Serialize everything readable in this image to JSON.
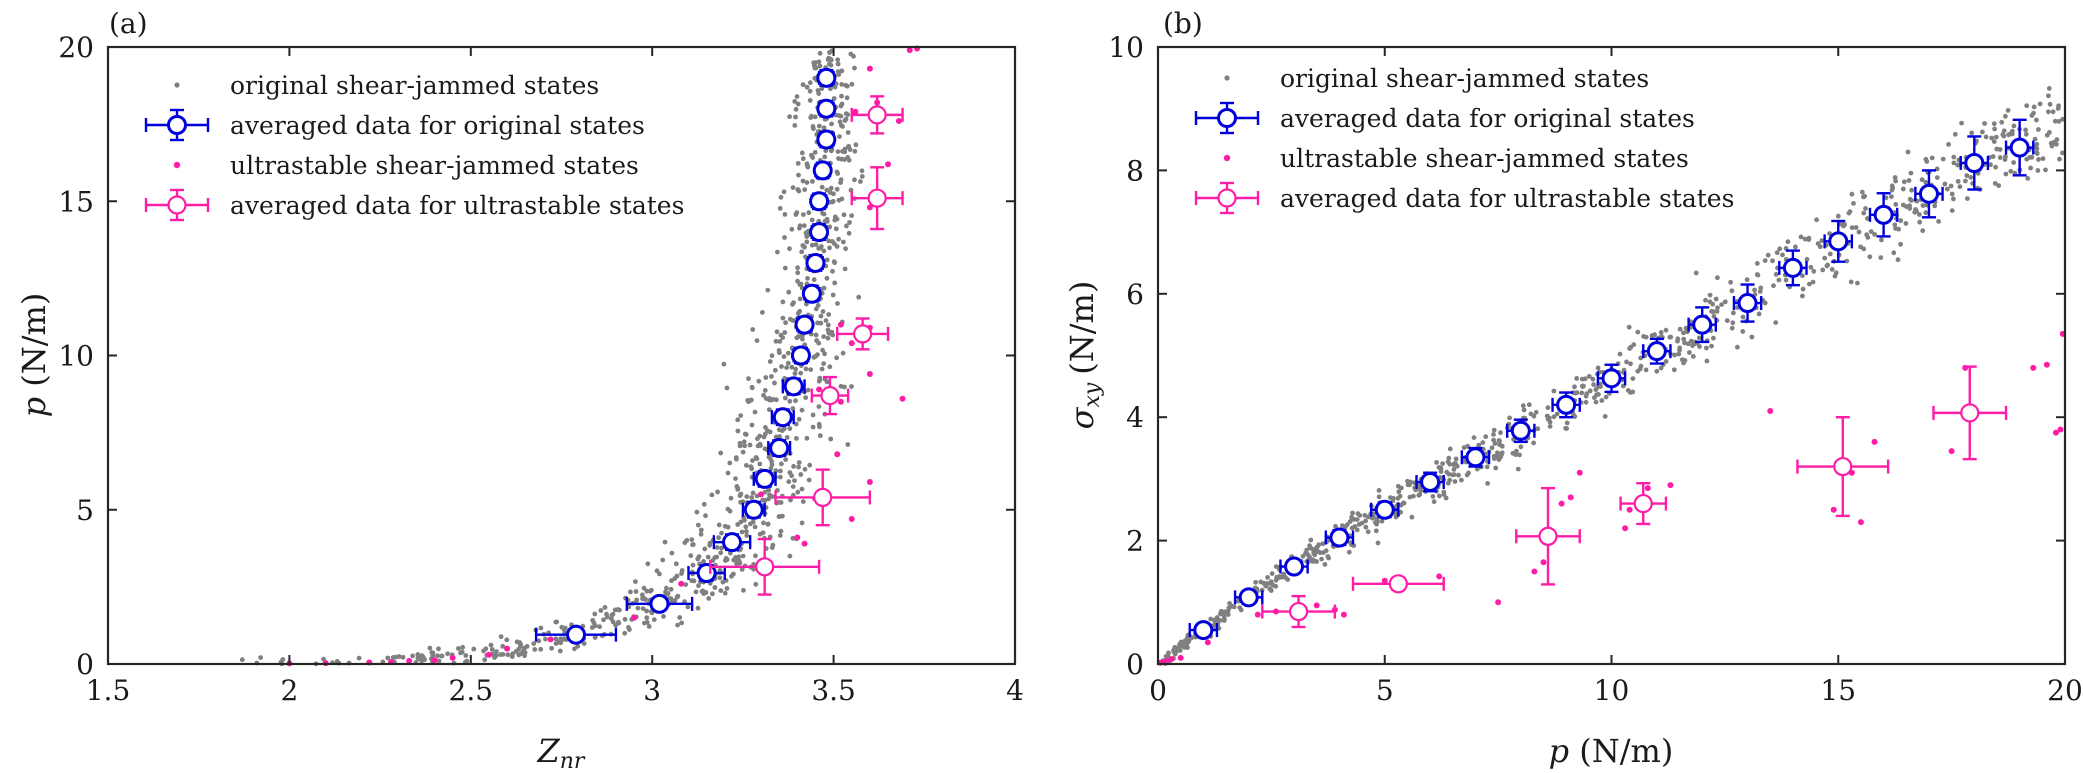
{
  "chart_data": [
    {
      "type": "scatter",
      "panel_label": "(a)",
      "xlabel": "Z_nr",
      "xlabel_main": "Z",
      "xlabel_sub": "nr",
      "ylabel": "p (N/m)",
      "ylabel_main": "p",
      "ylabel_unit": "(N/m)",
      "xlim": [
        1.5,
        4
      ],
      "ylim": [
        0,
        20
      ],
      "xticks": [
        1.5,
        2,
        2.5,
        3,
        3.5,
        4
      ],
      "yticks": [
        0,
        5,
        10,
        15,
        20
      ],
      "xtick_labels": [
        "1.5",
        "2",
        "2.5",
        "3",
        "3.5",
        "4"
      ],
      "ytick_labels": [
        "0",
        "5",
        "10",
        "15",
        "20"
      ],
      "legend": {
        "location": "top-left",
        "entries": [
          "original shear-jammed states",
          "averaged data for original states",
          "ultrastable shear-jammed states",
          "averaged data for ultrastable states"
        ]
      },
      "series": [
        {
          "name": "averaged data for original states",
          "color": "#0000dd",
          "points": [
            {
              "x": 2.79,
              "y": 0.95,
              "xerr": 0.11,
              "yerr": 0.15
            },
            {
              "x": 3.02,
              "y": 1.95,
              "xerr": 0.09,
              "yerr": 0.2
            },
            {
              "x": 3.15,
              "y": 2.95,
              "xerr": 0.05,
              "yerr": 0.25
            },
            {
              "x": 3.22,
              "y": 3.95,
              "xerr": 0.05,
              "yerr": 0.25
            },
            {
              "x": 3.28,
              "y": 5.0,
              "xerr": 0.03,
              "yerr": 0.25
            },
            {
              "x": 3.31,
              "y": 6.0,
              "xerr": 0.03,
              "yerr": 0.25
            },
            {
              "x": 3.35,
              "y": 7.0,
              "xerr": 0.03,
              "yerr": 0.25
            },
            {
              "x": 3.36,
              "y": 8.0,
              "xerr": 0.03,
              "yerr": 0.25
            },
            {
              "x": 3.39,
              "y": 9.0,
              "xerr": 0.03,
              "yerr": 0.25
            },
            {
              "x": 3.41,
              "y": 10.0,
              "xerr": 0.02,
              "yerr": 0.25
            },
            {
              "x": 3.42,
              "y": 11.0,
              "xerr": 0.02,
              "yerr": 0.25
            },
            {
              "x": 3.44,
              "y": 12.0,
              "xerr": 0.02,
              "yerr": 0.25
            },
            {
              "x": 3.45,
              "y": 13.0,
              "xerr": 0.02,
              "yerr": 0.25
            },
            {
              "x": 3.46,
              "y": 14.0,
              "xerr": 0.02,
              "yerr": 0.25
            },
            {
              "x": 3.46,
              "y": 15.0,
              "xerr": 0.02,
              "yerr": 0.25
            },
            {
              "x": 3.47,
              "y": 16.0,
              "xerr": 0.02,
              "yerr": 0.25
            },
            {
              "x": 3.48,
              "y": 17.0,
              "xerr": 0.02,
              "yerr": 0.25
            },
            {
              "x": 3.48,
              "y": 18.0,
              "xerr": 0.02,
              "yerr": 0.25
            },
            {
              "x": 3.48,
              "y": 19.0,
              "xerr": 0.02,
              "yerr": 0.25
            }
          ]
        },
        {
          "name": "averaged data for ultrastable states",
          "color": "#ff1ca6",
          "points": [
            {
              "x": 3.31,
              "y": 3.15,
              "xerr": 0.15,
              "yerr": 0.9
            },
            {
              "x": 3.47,
              "y": 5.4,
              "xerr": 0.13,
              "yerr": 0.9
            },
            {
              "x": 3.49,
              "y": 8.7,
              "xerr": 0.05,
              "yerr": 0.6
            },
            {
              "x": 3.58,
              "y": 10.7,
              "xerr": 0.07,
              "yerr": 0.5
            },
            {
              "x": 3.62,
              "y": 15.1,
              "xerr": 0.07,
              "yerr": 1.0
            },
            {
              "x": 3.62,
              "y": 17.8,
              "xerr": 0.07,
              "yerr": 0.6
            }
          ]
        }
      ],
      "scatter_series": [
        {
          "name": "original shear-jammed states",
          "color": "#808080",
          "relation": "dense cloud following the averaged curve; x spread grows from 0.15 near p=0 to 0.05 near p=20",
          "anchors": [
            [
              2.0,
              0.0
            ],
            [
              2.3,
              0.05
            ],
            [
              2.55,
              0.35
            ],
            [
              2.79,
              0.95
            ],
            [
              3.02,
              1.95
            ],
            [
              3.15,
              2.95
            ],
            [
              3.22,
              3.95
            ],
            [
              3.28,
              5.0
            ],
            [
              3.31,
              6.0
            ],
            [
              3.35,
              7.0
            ],
            [
              3.36,
              8.0
            ],
            [
              3.39,
              9.0
            ],
            [
              3.41,
              10.0
            ],
            [
              3.42,
              11.0
            ],
            [
              3.44,
              12.0
            ],
            [
              3.45,
              13.0
            ],
            [
              3.46,
              14.0
            ],
            [
              3.46,
              15.0
            ],
            [
              3.47,
              16.0
            ],
            [
              3.48,
              17.0
            ],
            [
              3.48,
              18.0
            ],
            [
              3.48,
              19.0
            ],
            [
              3.49,
              20.0
            ]
          ],
          "count": 950
        },
        {
          "name": "ultrastable shear-jammed states",
          "color": "#ff1ca6",
          "points": [
            [
              2.0,
              0.02
            ],
            [
              2.1,
              0.03
            ],
            [
              2.22,
              0.05
            ],
            [
              2.28,
              0.06
            ],
            [
              2.33,
              0.1
            ],
            [
              2.4,
              0.12
            ],
            [
              2.45,
              0.2
            ],
            [
              2.55,
              0.3
            ],
            [
              2.6,
              0.5
            ],
            [
              2.72,
              0.8
            ],
            [
              2.95,
              1.5
            ],
            [
              3.08,
              2.6
            ],
            [
              3.15,
              3.0
            ],
            [
              3.4,
              4.1
            ],
            [
              3.3,
              5.5
            ],
            [
              3.55,
              4.7
            ],
            [
              3.6,
              5.9
            ],
            [
              3.46,
              8.9
            ],
            [
              3.52,
              8.5
            ],
            [
              3.6,
              9.4
            ],
            [
              3.55,
              10.4
            ],
            [
              3.6,
              10.9
            ],
            [
              3.52,
              11.0
            ],
            [
              3.65,
              16.2
            ],
            [
              3.6,
              14.8
            ],
            [
              3.62,
              18.2
            ],
            [
              3.68,
              17.6
            ],
            [
              3.6,
              19.3
            ],
            [
              3.71,
              19.9
            ],
            [
              3.73,
              19.95
            ],
            [
              3.56,
              17.9
            ],
            [
              3.69,
              8.6
            ],
            [
              3.51,
              6.8
            ],
            [
              3.42,
              3.9
            ]
          ]
        }
      ]
    },
    {
      "type": "scatter",
      "panel_label": "(b)",
      "xlabel": "p (N/m)",
      "xlabel_main": "p",
      "xlabel_unit": "(N/m)",
      "ylabel": "σ_xy (N/m)",
      "ylabel_main": "σ",
      "ylabel_sub": "xy",
      "ylabel_unit": "(N/m)",
      "xlim": [
        0,
        20
      ],
      "ylim": [
        0,
        10
      ],
      "xticks": [
        0,
        5,
        10,
        15,
        20
      ],
      "yticks": [
        0,
        2,
        4,
        6,
        8,
        10
      ],
      "xtick_labels": [
        "0",
        "5",
        "10",
        "15",
        "20"
      ],
      "ytick_labels": [
        "0",
        "2",
        "4",
        "6",
        "8",
        "10"
      ],
      "legend": {
        "location": "top-left",
        "entries": [
          "original shear-jammed states",
          "averaged data for original states",
          "ultrastable shear-jammed states",
          "averaged data for ultrastable states"
        ]
      },
      "series": [
        {
          "name": "averaged data for original states",
          "color": "#0000dd",
          "points": [
            {
              "x": 1.0,
              "y": 0.55,
              "xerr": 0.3,
              "yerr": 0.1
            },
            {
              "x": 2.0,
              "y": 1.08,
              "xerr": 0.3,
              "yerr": 0.1
            },
            {
              "x": 3.0,
              "y": 1.58,
              "xerr": 0.3,
              "yerr": 0.1
            },
            {
              "x": 4.0,
              "y": 2.05,
              "xerr": 0.3,
              "yerr": 0.12
            },
            {
              "x": 5.0,
              "y": 2.5,
              "xerr": 0.3,
              "yerr": 0.12
            },
            {
              "x": 6.0,
              "y": 2.95,
              "xerr": 0.3,
              "yerr": 0.15
            },
            {
              "x": 7.0,
              "y": 3.35,
              "xerr": 0.3,
              "yerr": 0.15
            },
            {
              "x": 8.0,
              "y": 3.78,
              "xerr": 0.3,
              "yerr": 0.18
            },
            {
              "x": 9.0,
              "y": 4.2,
              "xerr": 0.3,
              "yerr": 0.2
            },
            {
              "x": 10.0,
              "y": 4.63,
              "xerr": 0.3,
              "yerr": 0.22
            },
            {
              "x": 11.0,
              "y": 5.07,
              "xerr": 0.3,
              "yerr": 0.2
            },
            {
              "x": 12.0,
              "y": 5.5,
              "xerr": 0.3,
              "yerr": 0.28
            },
            {
              "x": 13.0,
              "y": 5.85,
              "xerr": 0.3,
              "yerr": 0.3
            },
            {
              "x": 14.0,
              "y": 6.42,
              "xerr": 0.3,
              "yerr": 0.28
            },
            {
              "x": 15.0,
              "y": 6.85,
              "xerr": 0.3,
              "yerr": 0.33
            },
            {
              "x": 16.0,
              "y": 7.28,
              "xerr": 0.3,
              "yerr": 0.35
            },
            {
              "x": 17.0,
              "y": 7.62,
              "xerr": 0.3,
              "yerr": 0.38
            },
            {
              "x": 18.0,
              "y": 8.12,
              "xerr": 0.3,
              "yerr": 0.43
            },
            {
              "x": 19.0,
              "y": 8.37,
              "xerr": 0.3,
              "yerr": 0.45
            }
          ]
        },
        {
          "name": "averaged data for ultrastable states",
          "color": "#ff1ca6",
          "points": [
            {
              "x": 3.1,
              "y": 0.85,
              "xerr": 0.8,
              "yerr": 0.25
            },
            {
              "x": 5.3,
              "y": 1.3,
              "xerr": 1.0,
              "yerr": 0.1
            },
            {
              "x": 8.6,
              "y": 2.07,
              "xerr": 0.7,
              "yerr": 0.78
            },
            {
              "x": 10.7,
              "y": 2.6,
              "xerr": 0.5,
              "yerr": 0.33
            },
            {
              "x": 15.1,
              "y": 3.2,
              "xerr": 1.0,
              "yerr": 0.8
            },
            {
              "x": 17.9,
              "y": 4.07,
              "xerr": 0.8,
              "yerr": 0.75
            }
          ]
        }
      ],
      "scatter_series": [
        {
          "name": "original shear-jammed states",
          "color": "#808080",
          "relation": "narrow band following the averaged curve from the origin to p=20; y spread grows with p",
          "anchors": [
            [
              0.0,
              0.0
            ],
            [
              1.0,
              0.55
            ],
            [
              2.0,
              1.08
            ],
            [
              3.0,
              1.58
            ],
            [
              4.0,
              2.05
            ],
            [
              5.0,
              2.5
            ],
            [
              6.0,
              2.95
            ],
            [
              7.0,
              3.35
            ],
            [
              8.0,
              3.78
            ],
            [
              9.0,
              4.2
            ],
            [
              10.0,
              4.63
            ],
            [
              11.0,
              5.07
            ],
            [
              12.0,
              5.5
            ],
            [
              13.0,
              5.85
            ],
            [
              14.0,
              6.42
            ],
            [
              15.0,
              6.85
            ],
            [
              16.0,
              7.28
            ],
            [
              17.0,
              7.62
            ],
            [
              18.0,
              8.12
            ],
            [
              19.0,
              8.37
            ],
            [
              20.0,
              8.75
            ]
          ],
          "count": 900
        },
        {
          "name": "ultrastable shear-jammed states",
          "color": "#ff1ca6",
          "points": [
            [
              0.05,
              0.02
            ],
            [
              0.1,
              0.03
            ],
            [
              0.2,
              0.05
            ],
            [
              0.3,
              0.08
            ],
            [
              0.5,
              0.1
            ],
            [
              1.1,
              0.35
            ],
            [
              2.2,
              0.8
            ],
            [
              2.6,
              0.85
            ],
            [
              3.5,
              0.95
            ],
            [
              3.9,
              0.88
            ],
            [
              4.1,
              0.8
            ],
            [
              5.0,
              1.35
            ],
            [
              6.2,
              1.42
            ],
            [
              7.5,
              1.0
            ],
            [
              8.3,
              1.5
            ],
            [
              8.5,
              1.65
            ],
            [
              8.9,
              2.6
            ],
            [
              9.1,
              2.7
            ],
            [
              9.3,
              3.1
            ],
            [
              10.3,
              2.2
            ],
            [
              10.8,
              2.85
            ],
            [
              11.3,
              2.9
            ],
            [
              10.4,
              2.5
            ],
            [
              13.5,
              4.1
            ],
            [
              14.9,
              2.5
            ],
            [
              15.3,
              3.1
            ],
            [
              15.5,
              2.3
            ],
            [
              15.8,
              3.6
            ],
            [
              17.5,
              3.45
            ],
            [
              17.8,
              4.8
            ],
            [
              19.3,
              4.8
            ],
            [
              19.6,
              4.85
            ],
            [
              19.95,
              5.35
            ],
            [
              19.9,
              3.8
            ],
            [
              19.8,
              3.75
            ]
          ]
        }
      ]
    }
  ]
}
